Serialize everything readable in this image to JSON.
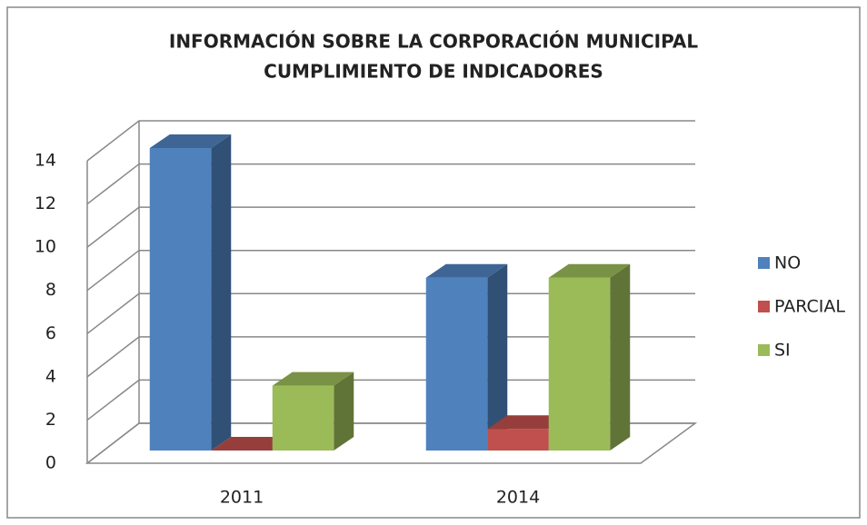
{
  "chart_data": {
    "type": "bar3d",
    "title": [
      "INFORMACIÓN SOBRE LA CORPORACIÓN MUNICIPAL",
      "CUMPLIMIENTO DE INDICADORES"
    ],
    "categories": [
      "2011",
      "2014"
    ],
    "series": [
      {
        "name": "NO",
        "color": "#4f81bd",
        "values": [
          14,
          8
        ]
      },
      {
        "name": "PARCIAL",
        "color": "#c0504d",
        "values": [
          0,
          1
        ]
      },
      {
        "name": "SI",
        "color": "#9bbb59",
        "values": [
          3,
          8
        ]
      }
    ],
    "ylim": [
      0,
      14
    ],
    "yticks": [
      0,
      2,
      4,
      6,
      8,
      10,
      12,
      14
    ],
    "grid": true,
    "legend": "right"
  }
}
